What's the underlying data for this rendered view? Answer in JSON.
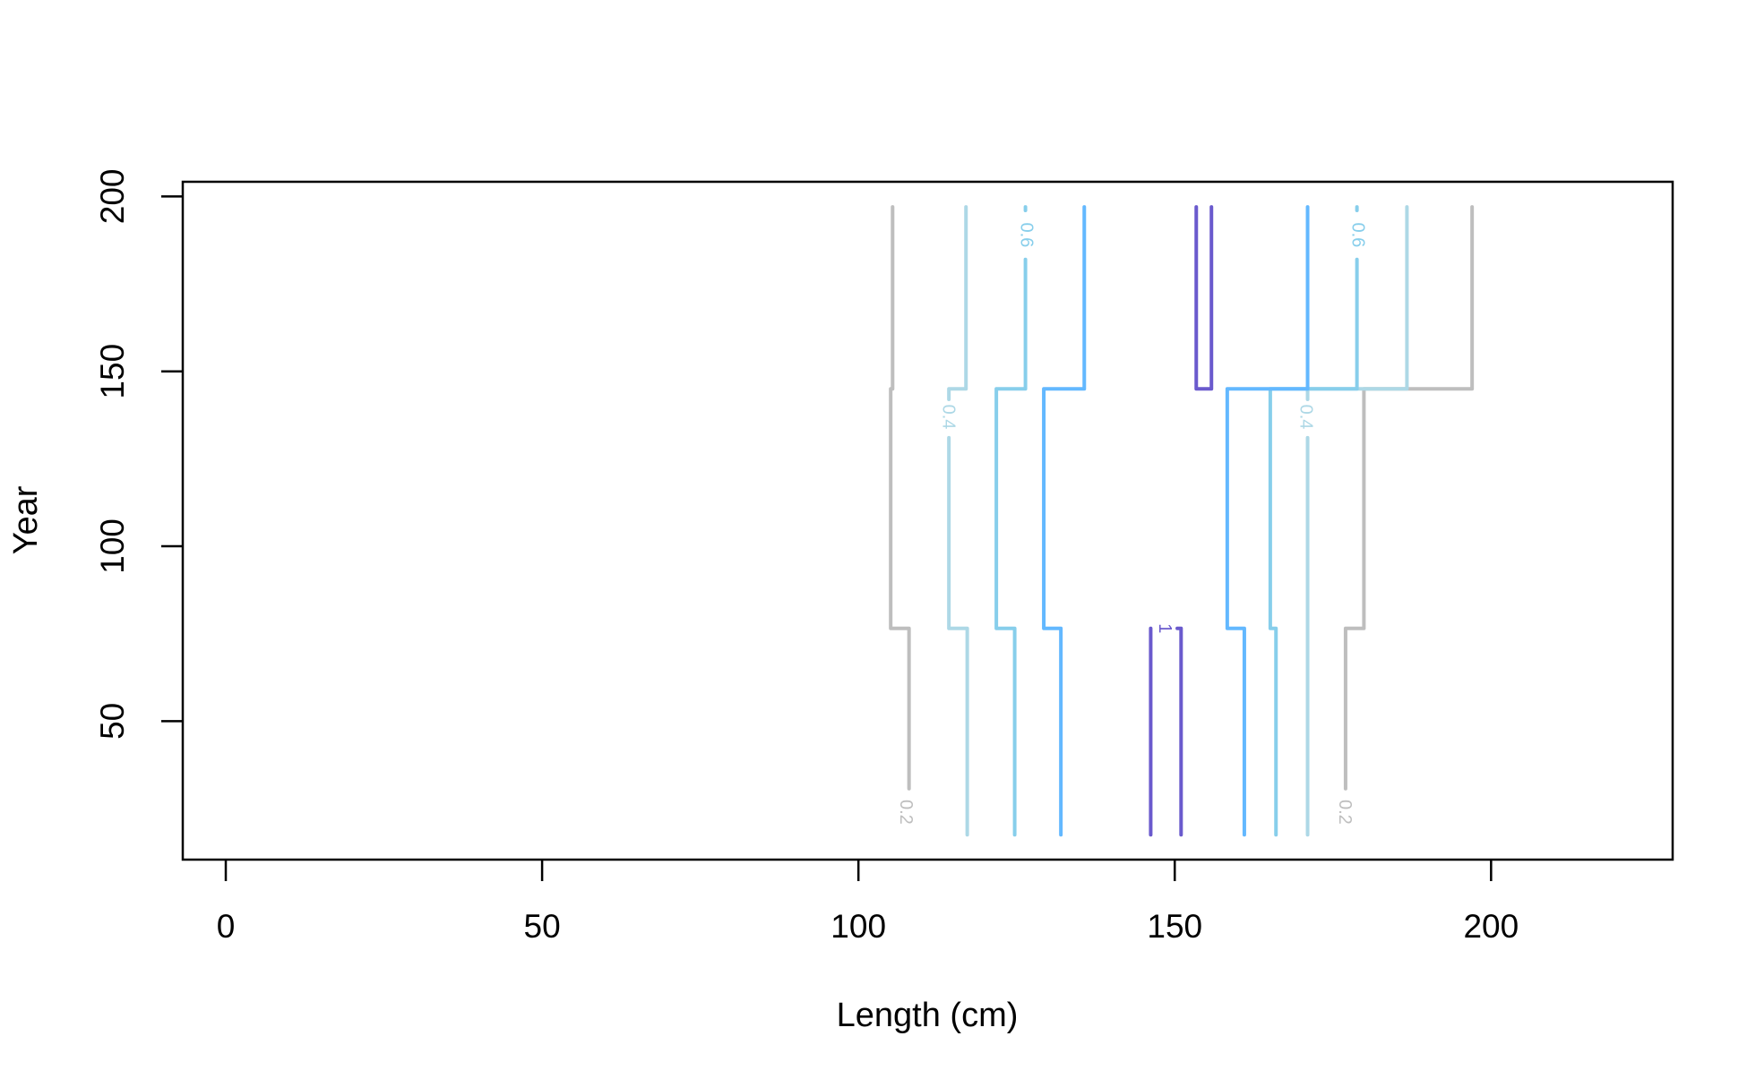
{
  "chart_data": {
    "type": "contour",
    "x_label": "Length (cm)",
    "y_label": "Year",
    "xlim": [
      -6.8,
      228.7
    ],
    "ylim": [
      10.4,
      204.2
    ],
    "xticks": [
      0,
      50,
      100,
      150,
      200
    ],
    "yticks": [
      50,
      100,
      150,
      200
    ],
    "series": [
      {
        "level": 0.2,
        "color": "#bebebe",
        "x": [
          108,
          108,
          105.1,
          105.1,
          105.4,
          105.4,
          null,
          177,
          177,
          179.9,
          179.9,
          197,
          197
        ],
        "y": [
          30.7,
          76.5,
          76.5,
          145,
          145,
          197,
          null,
          30.7,
          76.5,
          76.5,
          145,
          145,
          197
        ],
        "labels": [
          {
            "x": 107.4,
            "y": 24
          },
          {
            "x": 176.8,
            "y": 24
          }
        ]
      },
      {
        "level": 0.4,
        "color": "#add8e6",
        "x": [
          117.2,
          117.2,
          114.3,
          114.3,
          null,
          114.3,
          114.3,
          117,
          117,
          null,
          171,
          171,
          null,
          171,
          171,
          186.7,
          186.7
        ],
        "y": [
          17.5,
          76.5,
          76.5,
          131,
          null,
          142,
          145,
          145,
          197,
          null,
          17.5,
          131,
          null,
          142,
          145,
          145,
          197
        ],
        "labels": [
          {
            "x": 114.1,
            "y": 137
          },
          {
            "x": 170.6,
            "y": 137
          }
        ]
      },
      {
        "level": 0.6,
        "color": "#87ceeb",
        "x": [
          124.7,
          124.7,
          121.8,
          121.8,
          126.4,
          126.4,
          null,
          126.4,
          126.4,
          null,
          166,
          166,
          165.1,
          165.1,
          178.8,
          178.8,
          null,
          178.8,
          178.8
        ],
        "y": [
          17.5,
          76.5,
          76.5,
          145,
          145,
          182,
          null,
          196,
          197,
          null,
          17.5,
          76.5,
          76.5,
          145,
          145,
          182,
          null,
          196,
          197
        ],
        "labels": [
          {
            "x": 126.4,
            "y": 189
          },
          {
            "x": 178.8,
            "y": 189
          }
        ]
      },
      {
        "color": "#63b8ff",
        "x": [
          132,
          132,
          129.3,
          129.3,
          135.7,
          135.7,
          null,
          161,
          161,
          158.3,
          158.3,
          171,
          171
        ],
        "y": [
          17.5,
          76.5,
          76.5,
          145,
          145,
          197,
          null,
          17.5,
          76.5,
          76.5,
          145,
          145,
          197
        ]
      },
      {
        "level": 1,
        "color": "#6a5acd",
        "x": [
          146.2,
          146.2,
          null,
          150.4,
          151,
          151,
          null,
          153.4,
          153.4,
          155.8,
          155.8
        ],
        "y": [
          17.5,
          76.5,
          null,
          76.5,
          76.5,
          17.5,
          null,
          197,
          145,
          145,
          197
        ],
        "labels": [
          {
            "x": 148.3,
            "y": 76.5
          }
        ]
      }
    ]
  }
}
